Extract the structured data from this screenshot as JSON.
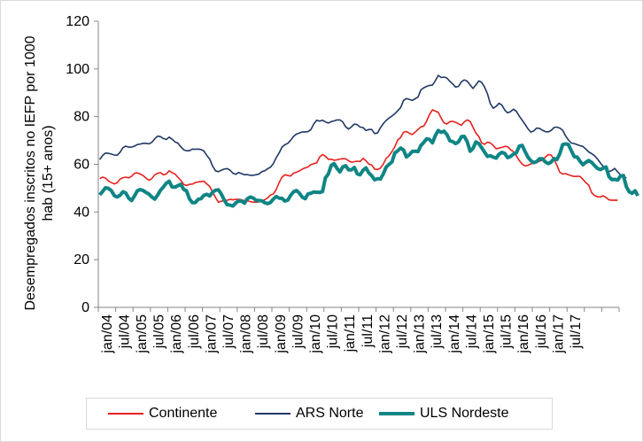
{
  "chart_data": {
    "type": "line",
    "title": "",
    "xlabel": "",
    "ylabel": "Desempregados inscritos no IEFP por 1000 hab (15+ anos)",
    "ylim": [
      0,
      120
    ],
    "yticks": [
      0,
      20,
      40,
      60,
      80,
      100,
      120
    ],
    "grid": false,
    "legend_position": "bottom",
    "x_start": "jan/04",
    "x_tick_labels": [
      "jan/04",
      "jul/04",
      "jan/05",
      "jul/05",
      "jan/06",
      "jul/06",
      "jan/07",
      "jul/07",
      "jan/08",
      "jul/08",
      "jan/09",
      "jul/09",
      "jan/10",
      "jul/10",
      "jan/11",
      "jul/11",
      "jan/12",
      "jul/12",
      "jan/13",
      "jul/13",
      "jan/14",
      "jul/14",
      "jan/15",
      "jul/15",
      "jan/16",
      "jul/16",
      "jan/17",
      "jul/17"
    ],
    "series": [
      {
        "name": "Continente",
        "color": "#e8211d",
        "values": [
          54.0,
          54.6,
          54.2,
          53.0,
          52.3,
          51.8,
          52.2,
          53.8,
          54.4,
          54.6,
          54.3,
          55.0,
          56.2,
          56.4,
          55.9,
          55.3,
          54.2,
          53.3,
          54.0,
          55.6,
          56.2,
          56.5,
          55.6,
          55.9,
          57.3,
          56.5,
          55.9,
          54.6,
          53.3,
          51.6,
          51.1,
          51.6,
          51.7,
          52.3,
          52.6,
          52.7,
          52.9,
          51.8,
          50.7,
          48.5,
          46.1,
          44.1,
          44.5,
          44.9,
          44.9,
          45.3,
          45.1,
          45.3,
          45.3,
          45.1,
          44.8,
          44.7,
          44.4,
          44.1,
          44.1,
          44.2,
          44.6,
          45.1,
          45.9,
          47.1,
          47.6,
          49.4,
          52.4,
          54.6,
          55.6,
          55.3,
          55.1,
          56.3,
          56.7,
          57.2,
          58.0,
          58.5,
          58.9,
          59.9,
          60.3,
          60.6,
          63.1,
          64.1,
          63.4,
          62.1,
          62.1,
          61.7,
          61.9,
          62.2,
          62.4,
          62.3,
          61.5,
          60.9,
          61.1,
          61.3,
          61.2,
          62.5,
          61.5,
          60.1,
          59.7,
          58.0,
          57.8,
          58.4,
          60.1,
          62.5,
          63.6,
          65.4,
          67.4,
          70.2,
          71.3,
          73.4,
          73.8,
          73.0,
          72.5,
          73.5,
          74.6,
          75.7,
          76.0,
          78.2,
          80.9,
          82.9,
          82.3,
          81.8,
          79.4,
          77.3,
          76.9,
          77.9,
          78.0,
          77.6,
          77.0,
          76.4,
          77.8,
          78.6,
          78.0,
          75.6,
          73.1,
          71.7,
          69.0,
          68.4,
          69.3,
          69.0,
          67.9,
          66.5,
          66.8,
          67.1,
          67.5,
          67.4,
          66.1,
          65.3,
          63.6,
          61.6,
          60.1,
          59.3,
          59.6,
          60.2,
          60.5,
          60.9,
          61.3,
          61.7,
          63.0,
          64.1,
          63.9,
          62.1,
          59.6,
          56.7,
          55.9,
          56.1,
          55.6,
          55.2,
          54.9,
          55.0,
          54.9,
          53.7,
          52.3,
          51.3,
          48.1,
          47.0,
          46.4,
          46.3,
          46.8,
          46.1,
          45.1,
          44.9,
          45.0,
          44.9
        ]
      },
      {
        "name": "ARS Norte",
        "color": "#1f3864",
        "values": [
          62.0,
          63.7,
          64.7,
          64.6,
          64.3,
          63.9,
          63.8,
          65.0,
          67.0,
          67.6,
          67.2,
          67.2,
          67.6,
          68.3,
          68.5,
          68.8,
          68.8,
          68.6,
          69.2,
          70.7,
          71.8,
          71.6,
          70.8,
          70.4,
          71.4,
          70.5,
          69.4,
          68.9,
          67.4,
          66.1,
          65.7,
          65.7,
          66.4,
          66.3,
          66.4,
          66.2,
          65.6,
          63.7,
          62.2,
          59.3,
          57.3,
          56.9,
          57.5,
          58.0,
          58.2,
          57.6,
          56.3,
          55.8,
          56.6,
          56.1,
          55.6,
          55.7,
          55.4,
          55.4,
          55.6,
          55.9,
          56.9,
          57.3,
          58.1,
          58.8,
          60.3,
          62.8,
          64.8,
          67.2,
          68.2,
          68.8,
          70.1,
          71.7,
          72.7,
          73.1,
          73.6,
          73.6,
          73.7,
          74.6,
          77.0,
          78.5,
          78.1,
          78.5,
          77.8,
          77.3,
          77.9,
          78.2,
          78.6,
          78.6,
          77.8,
          75.7,
          74.8,
          75.7,
          76.9,
          76.6,
          75.6,
          75.4,
          74.2,
          74.6,
          74.6,
          72.9,
          73.1,
          75.3,
          77.1,
          78.4,
          79.4,
          80.3,
          81.2,
          82.5,
          83.8,
          86.8,
          87.6,
          87.2,
          86.8,
          87.5,
          88.2,
          91.2,
          92.1,
          92.7,
          93.1,
          93.2,
          95.1,
          97.3,
          96.4,
          96.6,
          96.2,
          94.8,
          93.7,
          92.4,
          92.7,
          94.6,
          95.4,
          94.9,
          93.3,
          91.8,
          93.3,
          95.0,
          94.4,
          92.4,
          89.6,
          85.4,
          83.5,
          84.3,
          85.6,
          84.8,
          82.7,
          81.6,
          82.1,
          83.1,
          82.2,
          80.2,
          78.5,
          76.8,
          74.9,
          73.5,
          74.0,
          75.2,
          75.1,
          74.3,
          73.7,
          73.6,
          74.2,
          75.4,
          75.6,
          75.2,
          74.3,
          71.9,
          70.2,
          68.9,
          68.7,
          68.3,
          67.8,
          67.5,
          66.4,
          65.2,
          64.5,
          63.6,
          62.3,
          60.6,
          59.2,
          57.8,
          56.9,
          57.4,
          58.3,
          56.8,
          55.6,
          55.2,
          54.2
        ]
      },
      {
        "name": "ULS Nordeste",
        "color": "#0f8585",
        "values": [
          47.2,
          48.6,
          50.2,
          49.9,
          49.0,
          46.9,
          46.3,
          47.0,
          48.5,
          48.0,
          45.8,
          44.8,
          46.7,
          48.9,
          49.4,
          49.0,
          48.2,
          47.5,
          46.3,
          45.4,
          47.1,
          49.1,
          50.5,
          52.1,
          52.9,
          50.5,
          50.4,
          51.0,
          51.6,
          49.5,
          48.9,
          45.5,
          43.9,
          43.9,
          45.3,
          45.6,
          47.0,
          47.4,
          46.7,
          48.3,
          49.1,
          49.3,
          47.6,
          45.1,
          43.1,
          42.9,
          42.5,
          43.8,
          44.6,
          44.6,
          43.7,
          45.5,
          46.3,
          45.9,
          44.9,
          44.8,
          44.7,
          43.9,
          43.5,
          44.0,
          45.4,
          46.5,
          45.8,
          45.7,
          44.6,
          45.0,
          47.0,
          48.5,
          49.0,
          47.9,
          46.2,
          45.6,
          47.6,
          47.9,
          48.4,
          48.3,
          48.2,
          48.6,
          54.3,
          55.9,
          59.5,
          60.3,
          58.3,
          56.8,
          58.9,
          59.4,
          57.7,
          57.7,
          58.7,
          56.0,
          55.6,
          57.5,
          58.5,
          56.4,
          55.2,
          53.5,
          54.0,
          53.8,
          56.0,
          58.8,
          60.0,
          61.0,
          64.8,
          65.7,
          66.8,
          66.0,
          63.1,
          64.0,
          65.4,
          65.5,
          65.3,
          67.9,
          69.2,
          70.7,
          70.4,
          69.0,
          72.1,
          74.2,
          73.4,
          73.9,
          72.5,
          69.9,
          69.5,
          68.7,
          69.4,
          71.6,
          71.7,
          69.5,
          65.5,
          66.6,
          69.4,
          68.7,
          67.0,
          65.1,
          63.3,
          63.6,
          63.0,
          62.6,
          64.2,
          65.0,
          64.5,
          62.8,
          63.3,
          64.3,
          64.8,
          67.6,
          67.9,
          65.4,
          63.0,
          61.5,
          60.7,
          61.1,
          62.3,
          62.3,
          61.0,
          60.3,
          60.9,
          62.4,
          62.0,
          64.4,
          68.3,
          68.6,
          68.3,
          65.7,
          63.2,
          63.1,
          61.3,
          59.8,
          60.8,
          61.6,
          60.8,
          59.5,
          58.3,
          57.8,
          58.4,
          58.9,
          54.8,
          53.6,
          53.7,
          53.4,
          55.1,
          55.3,
          50.6,
          48.5,
          47.8,
          48.9,
          46.8
        ]
      }
    ]
  }
}
